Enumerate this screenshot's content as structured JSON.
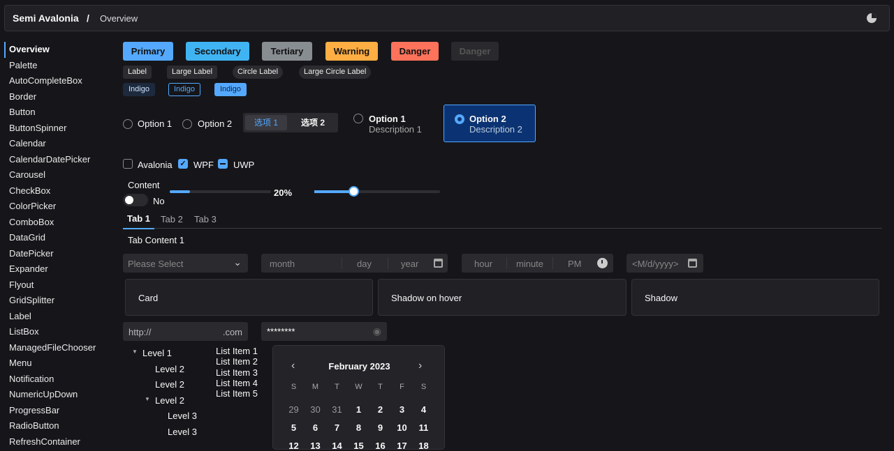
{
  "header": {
    "title": "Semi Avalonia",
    "separator": "/",
    "page": "Overview",
    "theme_icon": "theme-toggle-icon"
  },
  "sidebar": {
    "items": [
      "Overview",
      "Palette",
      "AutoCompleteBox",
      "Border",
      "Button",
      "ButtonSpinner",
      "Calendar",
      "CalendarDatePicker",
      "Carousel",
      "CheckBox",
      "ColorPicker",
      "ComboBox",
      "DataGrid",
      "DatePicker",
      "Expander",
      "Flyout",
      "GridSplitter",
      "Label",
      "ListBox",
      "ManagedFileChooser",
      "Menu",
      "Notification",
      "NumericUpDown",
      "ProgressBar",
      "RadioButton",
      "RefreshContainer"
    ],
    "active": "Overview"
  },
  "buttons": [
    {
      "label": "Primary",
      "color": "#54a9ff"
    },
    {
      "label": "Secondary",
      "color": "#40b4f3"
    },
    {
      "label": "Tertiary",
      "color": "#888d92"
    },
    {
      "label": "Warning",
      "color": "#ffae43"
    },
    {
      "label": "Danger",
      "color": "#fc725a"
    },
    {
      "label": "Danger",
      "color": "#2a2a2e",
      "disabled": true
    }
  ],
  "labels": [
    "Label",
    "Large Label",
    "Circle Label",
    "Large Circle Label"
  ],
  "indigo": [
    "Indigo",
    "Indigo",
    "Indigo"
  ],
  "radios": {
    "option1": "Option 1",
    "option2": "Option 2"
  },
  "segmented": {
    "items": [
      "选项 1",
      "选项 2"
    ],
    "selected": 0
  },
  "radio_cards": [
    {
      "title": "Option 1",
      "desc": "Description 1",
      "checked": false
    },
    {
      "title": "Option 2",
      "desc": "Description 2",
      "checked": true
    }
  ],
  "checkboxes": [
    {
      "label": "Avalonia",
      "state": "unchecked"
    },
    {
      "label": "WPF",
      "state": "checked"
    },
    {
      "label": "UWP",
      "state": "indeterminate"
    }
  ],
  "toggle": {
    "header": "Content",
    "state_label": "No",
    "on": false
  },
  "progress": {
    "value": 20,
    "label": "20%"
  },
  "slider": {
    "value": 31
  },
  "tabs": {
    "items": [
      "Tab 1",
      "Tab 2",
      "Tab 3"
    ],
    "selected": 0,
    "content": "Tab Content 1"
  },
  "combo": {
    "placeholder": "Please Select"
  },
  "datepicker": {
    "month": "month",
    "day": "day",
    "year": "year"
  },
  "timepicker": {
    "hour": "hour",
    "minute": "minute",
    "ampm": "PM"
  },
  "calendar_date_picker": {
    "placeholder": "<M/d/yyyy>"
  },
  "cards": [
    "Card",
    "Shadow on hover",
    "Shadow"
  ],
  "url_input": {
    "prefix": "http://",
    "suffix": ".com"
  },
  "password": {
    "value": "********"
  },
  "tree": [
    {
      "label": "Level 1",
      "level": 1,
      "expanded": true
    },
    {
      "label": "Level 2",
      "level": 2
    },
    {
      "label": "Level 2",
      "level": 2
    },
    {
      "label": "Level 2",
      "level": 2,
      "expanded": true
    },
    {
      "label": "Level 3",
      "level": 3
    },
    {
      "label": "Level 3",
      "level": 3
    }
  ],
  "list": [
    "List Item 1",
    "List Item 2",
    "List Item 3",
    "List Item 4",
    "List Item 5"
  ],
  "calendar": {
    "title": "February 2023",
    "weekdays": [
      "S",
      "M",
      "T",
      "W",
      "T",
      "F",
      "S"
    ],
    "rows": [
      [
        "29",
        "30",
        "31",
        "1",
        "2",
        "3",
        "4"
      ],
      [
        "5",
        "6",
        "7",
        "8",
        "9",
        "10",
        "11"
      ],
      [
        "12",
        "13",
        "14",
        "15",
        "16",
        "17",
        "18"
      ]
    ]
  }
}
